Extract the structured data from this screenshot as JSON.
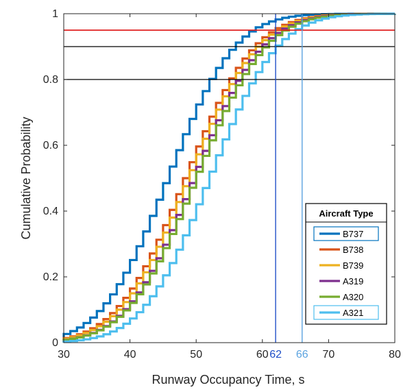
{
  "chart_data": {
    "type": "line",
    "subtype": "empirical-cdf-step",
    "xlabel": "Runway Occupancy Time, s",
    "ylabel": "Cumulative Probability",
    "xlim": [
      30,
      80
    ],
    "ylim": [
      0,
      1
    ],
    "xticks": [
      30,
      40,
      50,
      60,
      70,
      80
    ],
    "xtick_labels": [
      "30",
      "40",
      "50",
      "60",
      "70",
      "80"
    ],
    "yticks": [
      0,
      0.2,
      0.4,
      0.6,
      0.8,
      1
    ],
    "ytick_labels": [
      "0",
      "0.2",
      "0.4",
      "0.6",
      "0.8",
      "1"
    ],
    "step_width_s": 1,
    "series": [
      {
        "name": "B737",
        "color": "#0072BD",
        "mean": 45.3,
        "sd": 7.9
      },
      {
        "name": "B738",
        "color": "#D95319",
        "mean": 48.0,
        "sd": 8.2
      },
      {
        "name": "B739",
        "color": "#EDB120",
        "mean": 48.5,
        "sd": 8.2
      },
      {
        "name": "A319",
        "color": "#7E2F8E",
        "mean": 49.3,
        "sd": 8.1
      },
      {
        "name": "A320",
        "color": "#77AC30",
        "mean": 49.6,
        "sd": 8.2
      },
      {
        "name": "A321",
        "color": "#4DBEEE",
        "mean": 51.6,
        "sd": 8.0
      }
    ],
    "reference_lines": {
      "horizontal": [
        {
          "y": 0.95,
          "color": "#E02020"
        },
        {
          "y": 0.9,
          "color": "#000000"
        },
        {
          "y": 0.8,
          "color": "#000000"
        }
      ],
      "vertical": [
        {
          "x": 62,
          "label": "62",
          "color": "#1F4FC8"
        },
        {
          "x": 66,
          "label": "66",
          "color": "#5BA3E0"
        }
      ]
    },
    "legend": {
      "title": "Aircraft Type",
      "position": "bottom-right",
      "boxed_entries": [
        "B737",
        "A321"
      ]
    }
  }
}
